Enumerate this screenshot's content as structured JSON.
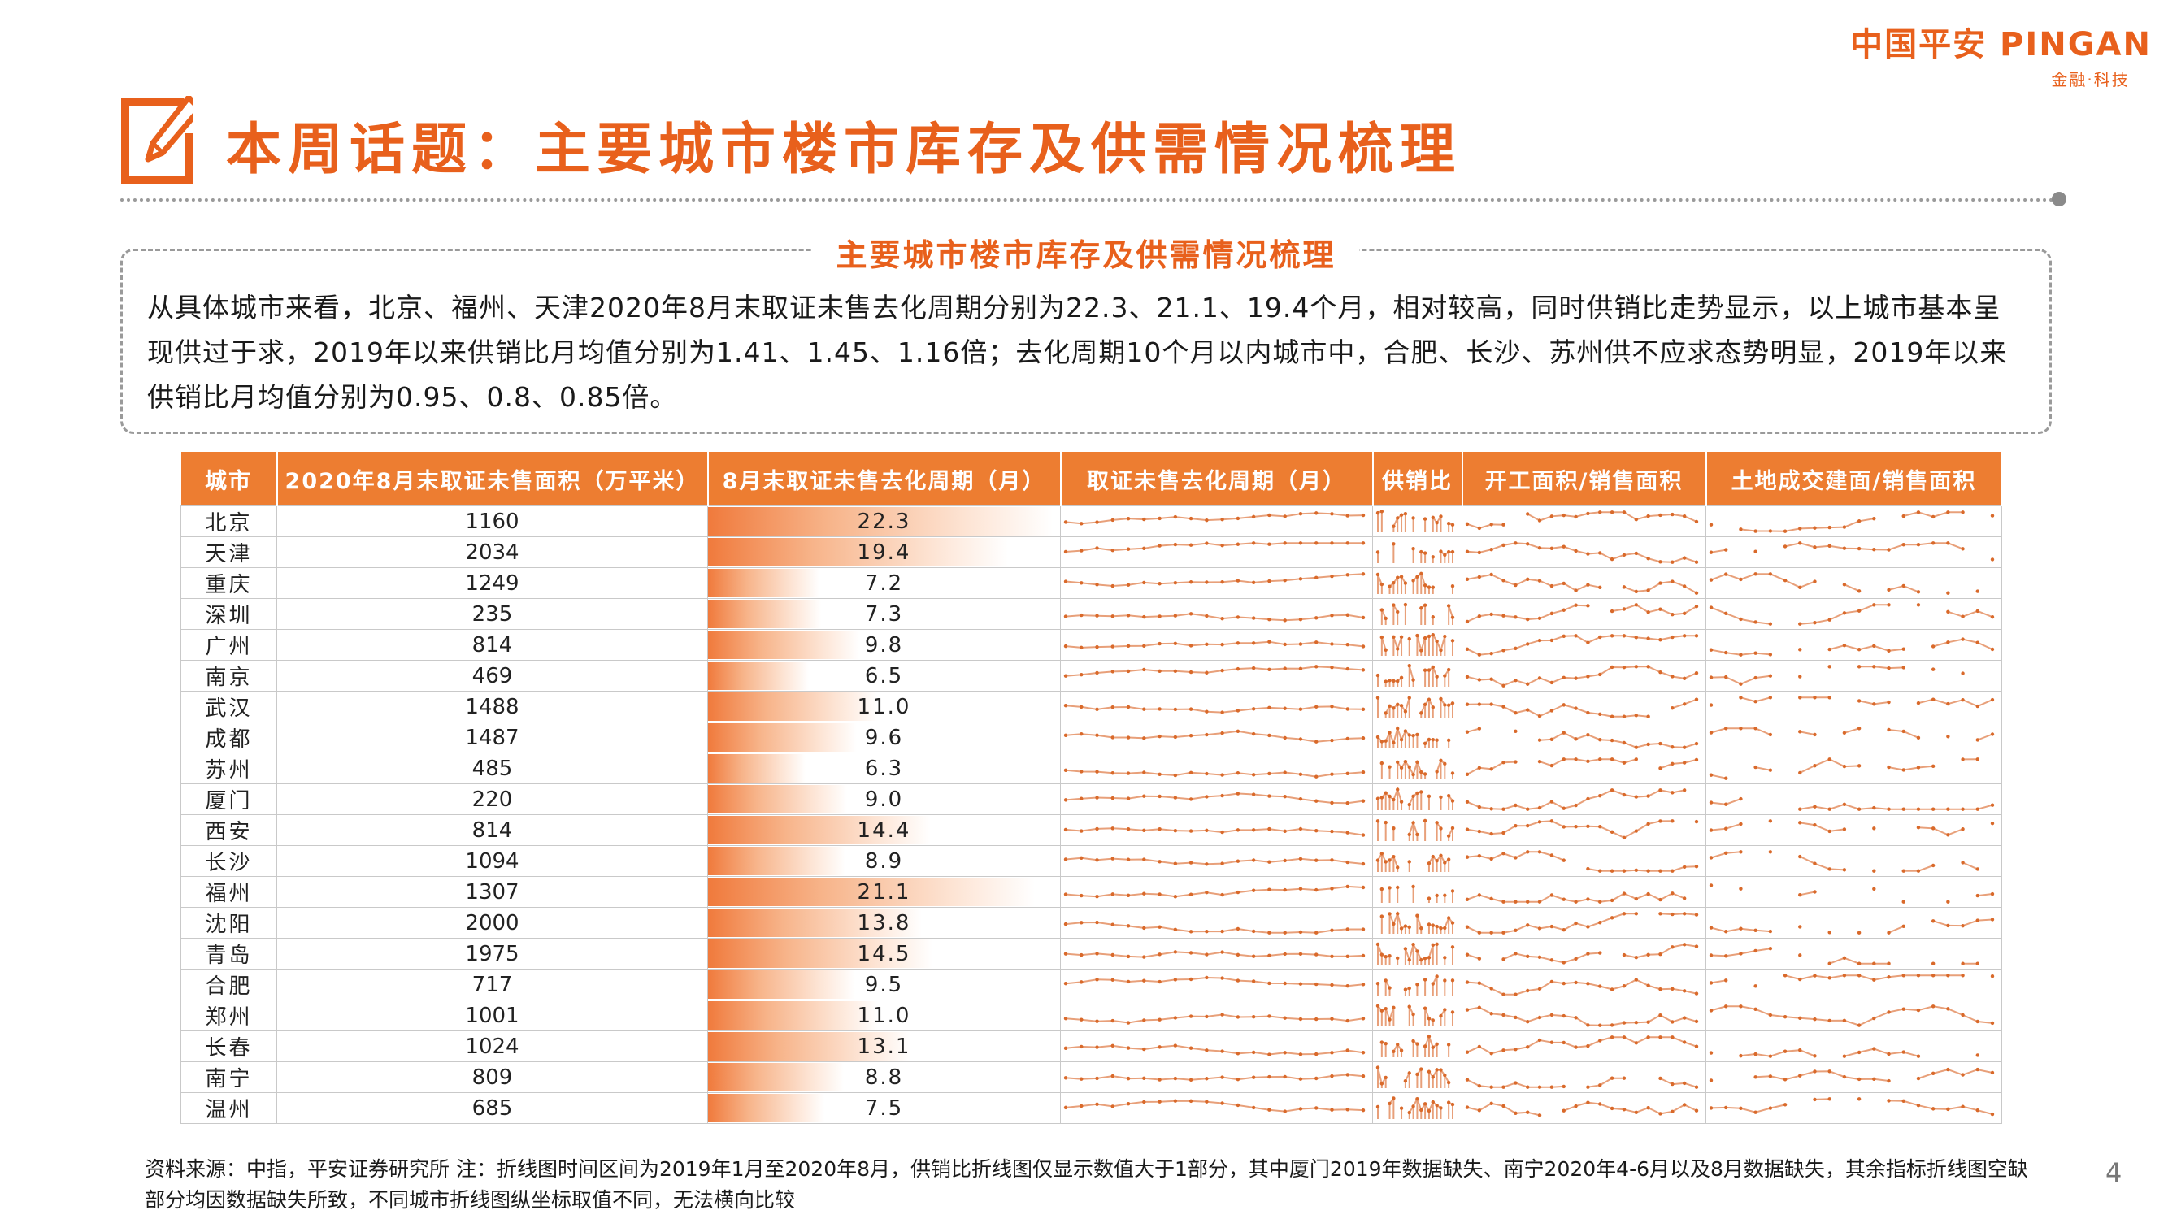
{
  "brand": {
    "name": "中国平安 PINGAN",
    "tagline": "金融·科技",
    "accent": "#e8601c"
  },
  "page_title": "本周话题：主要城市楼市库存及供需情况梳理",
  "summary": {
    "title": "主要城市楼市库存及供需情况梳理",
    "text": "从具体城市来看，北京、福州、天津2020年8月末取证未售去化周期分别为22.3、21.1、19.4个月，相对较高，同时供销比走势显示，以上城市基本呈现供过于求，2019年以来供销比月均值分别为1.41、1.45、1.16倍；去化周期10个月以内城市中，合肥、长沙、苏州供不应求态势明显，2019年以来供销比月均值分别为0.95、0.8、0.85倍。"
  },
  "table": {
    "headers": [
      "城市",
      "2020年8月末取证未售面积（万平米）",
      "8月末取证未售去化周期（月）",
      "取证未售去化周期（月）",
      "供销比",
      "开工面积/销售面积",
      "土地成交建面/销售面积"
    ],
    "bar_max": 22.3,
    "rows": [
      {
        "city": "北京",
        "area": "1160",
        "cycle": "22.3"
      },
      {
        "city": "天津",
        "area": "2034",
        "cycle": "19.4"
      },
      {
        "city": "重庆",
        "area": "1249",
        "cycle": "7.2"
      },
      {
        "city": "深圳",
        "area": "235",
        "cycle": "7.3"
      },
      {
        "city": "广州",
        "area": "814",
        "cycle": "9.8"
      },
      {
        "city": "南京",
        "area": "469",
        "cycle": "6.5"
      },
      {
        "city": "武汉",
        "area": "1488",
        "cycle": "11.0"
      },
      {
        "city": "成都",
        "area": "1487",
        "cycle": "9.6"
      },
      {
        "city": "苏州",
        "area": "485",
        "cycle": "6.3"
      },
      {
        "city": "厦门",
        "area": "220",
        "cycle": "9.0"
      },
      {
        "city": "西安",
        "area": "814",
        "cycle": "14.4"
      },
      {
        "city": "长沙",
        "area": "1094",
        "cycle": "8.9"
      },
      {
        "city": "福州",
        "area": "1307",
        "cycle": "21.1"
      },
      {
        "city": "沈阳",
        "area": "2000",
        "cycle": "13.8"
      },
      {
        "city": "青岛",
        "area": "1975",
        "cycle": "14.5"
      },
      {
        "city": "合肥",
        "area": "717",
        "cycle": "9.5"
      },
      {
        "city": "郑州",
        "area": "1001",
        "cycle": "11.0"
      },
      {
        "city": "长春",
        "area": "1024",
        "cycle": "13.1"
      },
      {
        "city": "南宁",
        "area": "809",
        "cycle": "8.8"
      },
      {
        "city": "温州",
        "area": "685",
        "cycle": "7.5"
      }
    ]
  },
  "colors": {
    "header_bg": "#ed7d31",
    "spark_line": "#e8a07a",
    "spark_dot": "#d9692a",
    "bar": "#f07a3c"
  },
  "footnote": "资料来源：中指，平安证券研究所 注：折线图时间区间为2019年1月至2020年8月，供销比折线图仅显示数值大于1部分，其中厦门2019年数据缺失、南宁2020年4-6月以及8月数据缺失，其余指标折线图空缺部分均因数据缺失所致，不同城市折线图纵坐标取值不同，无法横向比较",
  "page_number": "4"
}
